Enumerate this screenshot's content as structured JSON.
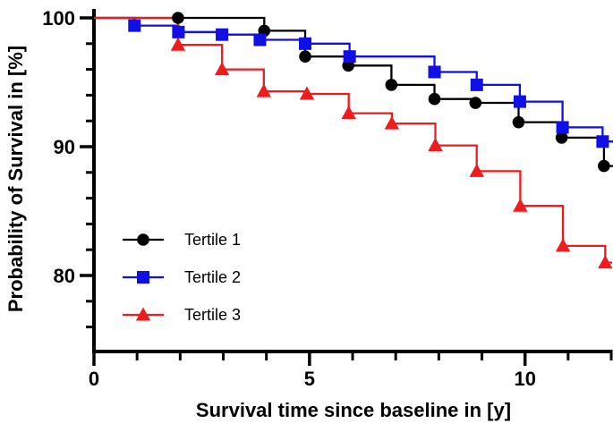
{
  "figure": {
    "background": "#ffffff",
    "axis_color": "#000000"
  },
  "chart_data": {
    "type": "line",
    "chart_style": "kaplan-meier-step",
    "title": "",
    "xlabel": "Survival time since baseline in [y]",
    "ylabel": "Probability of Survival in [%]",
    "xlim": [
      0,
      12.1
    ],
    "ylim": [
      74,
      100
    ],
    "grid": false,
    "legend_position": "inside-lower-left",
    "x_ticks": {
      "major": [
        {
          "value": 0,
          "label": "0"
        },
        {
          "value": 5,
          "label": "5"
        },
        {
          "value": 10,
          "label": "10"
        }
      ],
      "minor": [
        1,
        2,
        3,
        4,
        6,
        7,
        8,
        9,
        11,
        12
      ]
    },
    "y_ticks": {
      "major": [
        {
          "value": 100,
          "label": "100"
        },
        {
          "value": 90,
          "label": "90"
        },
        {
          "value": 80,
          "label": "80"
        }
      ],
      "minor": [
        98,
        96,
        94,
        92,
        88,
        86,
        84,
        82,
        78,
        76
      ]
    },
    "series": [
      {
        "name": "Tertile 1",
        "marker": "circle",
        "color": "#000000",
        "start": {
          "t": 0,
          "v": 100
        },
        "end_t": 12.05,
        "points": [
          {
            "t": 1.95,
            "v": 100
          },
          {
            "t": 3.95,
            "v": 99.0
          },
          {
            "t": 4.9,
            "v": 97.0
          },
          {
            "t": 5.9,
            "v": 96.3
          },
          {
            "t": 6.9,
            "v": 94.8
          },
          {
            "t": 7.9,
            "v": 93.7
          },
          {
            "t": 8.85,
            "v": 93.4
          },
          {
            "t": 9.85,
            "v": 91.9
          },
          {
            "t": 10.85,
            "v": 90.7
          },
          {
            "t": 11.83,
            "v": 88.5
          }
        ]
      },
      {
        "name": "Tertile 2",
        "marker": "square",
        "color": "#0f0fe6",
        "start": {
          "t": 0,
          "v": 100
        },
        "end_t": 12.05,
        "points": [
          {
            "t": 0.94,
            "v": 99.4
          },
          {
            "t": 1.96,
            "v": 98.9
          },
          {
            "t": 2.97,
            "v": 98.7
          },
          {
            "t": 3.85,
            "v": 98.3
          },
          {
            "t": 4.9,
            "v": 98.0
          },
          {
            "t": 5.93,
            "v": 97.0
          },
          {
            "t": 7.9,
            "v": 95.8
          },
          {
            "t": 8.88,
            "v": 94.8
          },
          {
            "t": 9.88,
            "v": 93.5
          },
          {
            "t": 10.87,
            "v": 91.5
          },
          {
            "t": 11.8,
            "v": 90.4
          }
        ]
      },
      {
        "name": "Tertile 3",
        "marker": "triangle",
        "color": "#ee1c1c",
        "start": {
          "t": 0,
          "v": 100
        },
        "end_t": 12.02,
        "points": [
          {
            "t": 1.95,
            "v": 97.9
          },
          {
            "t": 2.97,
            "v": 96.0
          },
          {
            "t": 3.94,
            "v": 94.3
          },
          {
            "t": 4.94,
            "v": 94.1
          },
          {
            "t": 5.91,
            "v": 92.6
          },
          {
            "t": 6.91,
            "v": 91.8
          },
          {
            "t": 7.92,
            "v": 90.1
          },
          {
            "t": 8.88,
            "v": 88.1
          },
          {
            "t": 9.89,
            "v": 85.4
          },
          {
            "t": 10.88,
            "v": 82.3
          },
          {
            "t": 11.86,
            "v": 81.0
          }
        ]
      }
    ]
  }
}
